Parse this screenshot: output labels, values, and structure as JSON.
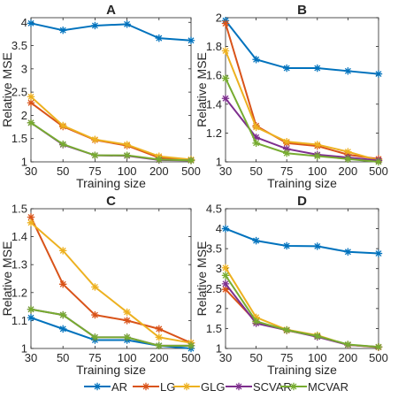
{
  "chart_data": [
    {
      "type": "line",
      "title": "A",
      "xlabel": "Training size",
      "ylabel": "Relative MSE",
      "x": [
        30,
        50,
        75,
        100,
        200,
        500
      ],
      "xticks": [
        "30",
        "50",
        "75",
        "100",
        "200",
        "500"
      ],
      "yticks": [
        "1",
        "1.5",
        "2",
        "2.5",
        "3",
        "3.5",
        "4"
      ],
      "ylim": [
        1,
        4.1
      ],
      "grid": false,
      "series": [
        {
          "name": "AR",
          "values": [
            3.98,
            3.83,
            3.93,
            3.96,
            3.66,
            3.61
          ]
        },
        {
          "name": "LG",
          "values": [
            2.27,
            1.76,
            1.47,
            1.35,
            1.09,
            1.04
          ]
        },
        {
          "name": "GLG",
          "values": [
            2.4,
            1.78,
            1.48,
            1.37,
            1.12,
            1.05
          ]
        },
        {
          "name": "SCVAR",
          "values": [
            1.84,
            1.37,
            1.14,
            1.13,
            1.04,
            1.03
          ]
        },
        {
          "name": "MCVAR",
          "values": [
            1.84,
            1.38,
            1.14,
            1.14,
            1.05,
            1.03
          ]
        }
      ]
    },
    {
      "type": "line",
      "title": "B",
      "xlabel": "Training size",
      "ylabel": "Relative MSE",
      "x": [
        30,
        50,
        75,
        100,
        200,
        500
      ],
      "xticks": [
        "30",
        "50",
        "75",
        "100",
        "200",
        "500"
      ],
      "yticks": [
        "1",
        "1.2",
        "1.4",
        "1.6",
        "1.8",
        "2"
      ],
      "ylim": [
        1,
        2
      ],
      "grid": false,
      "series": [
        {
          "name": "AR",
          "values": [
            1.98,
            1.71,
            1.65,
            1.65,
            1.63,
            1.61
          ]
        },
        {
          "name": "LG",
          "values": [
            1.96,
            1.25,
            1.13,
            1.11,
            1.05,
            1.02
          ]
        },
        {
          "name": "GLG",
          "values": [
            1.77,
            1.24,
            1.14,
            1.12,
            1.07,
            1.01
          ]
        },
        {
          "name": "SCVAR",
          "values": [
            1.44,
            1.17,
            1.09,
            1.05,
            1.03,
            1.01
          ]
        },
        {
          "name": "MCVAR",
          "values": [
            1.58,
            1.13,
            1.06,
            1.04,
            1.02,
            1.0
          ]
        }
      ]
    },
    {
      "type": "line",
      "title": "C",
      "xlabel": "Training size",
      "ylabel": "Relative MSE",
      "x": [
        30,
        50,
        75,
        100,
        200,
        500
      ],
      "xticks": [
        "30",
        "50",
        "75",
        "100",
        "200",
        "500"
      ],
      "yticks": [
        "1",
        "1.1",
        "1.2",
        "1.3",
        "1.4",
        "1.5"
      ],
      "ylim": [
        1,
        1.5
      ],
      "grid": false,
      "series": [
        {
          "name": "AR",
          "values": [
            1.11,
            1.07,
            1.03,
            1.03,
            1.01,
            1.0
          ]
        },
        {
          "name": "LG",
          "values": [
            1.47,
            1.23,
            1.12,
            1.1,
            1.07,
            1.02
          ]
        },
        {
          "name": "GLG",
          "values": [
            1.45,
            1.35,
            1.22,
            1.13,
            1.04,
            1.02
          ]
        },
        {
          "name": "SCVAR",
          "values": [
            1.14,
            1.12,
            1.04,
            1.04,
            1.01,
            1.01
          ]
        },
        {
          "name": "MCVAR",
          "values": [
            1.14,
            1.12,
            1.04,
            1.04,
            1.01,
            1.01
          ]
        }
      ]
    },
    {
      "type": "line",
      "title": "D",
      "xlabel": "Training size",
      "ylabel": "Relative MSE",
      "x": [
        30,
        50,
        75,
        100,
        200,
        500
      ],
      "xticks": [
        "30",
        "50",
        "75",
        "100",
        "200",
        "500"
      ],
      "yticks": [
        "1",
        "1.5",
        "2",
        "2.5",
        "3",
        "3.5",
        "4",
        "4.5"
      ],
      "ylim": [
        1,
        4.5
      ],
      "grid": false,
      "series": [
        {
          "name": "AR",
          "values": [
            4.0,
            3.7,
            3.57,
            3.56,
            3.42,
            3.38
          ]
        },
        {
          "name": "LG",
          "values": [
            2.48,
            1.67,
            1.45,
            1.31,
            1.09,
            1.03
          ]
        },
        {
          "name": "GLG",
          "values": [
            3.02,
            1.78,
            1.47,
            1.33,
            1.09,
            1.04
          ]
        },
        {
          "name": "SCVAR",
          "values": [
            2.62,
            1.63,
            1.46,
            1.29,
            1.09,
            1.04
          ]
        },
        {
          "name": "MCVAR",
          "values": [
            2.83,
            1.68,
            1.46,
            1.31,
            1.1,
            1.04
          ]
        }
      ]
    }
  ],
  "legend": {
    "placement": "bottom",
    "entries": [
      "AR",
      "LG",
      "GLG",
      "SCVAR",
      "MCVAR"
    ]
  },
  "colors": {
    "AR": "#0072BD",
    "LG": "#D95319",
    "GLG": "#EDB120",
    "SCVAR": "#7E2F8E",
    "MCVAR": "#77AC30"
  }
}
